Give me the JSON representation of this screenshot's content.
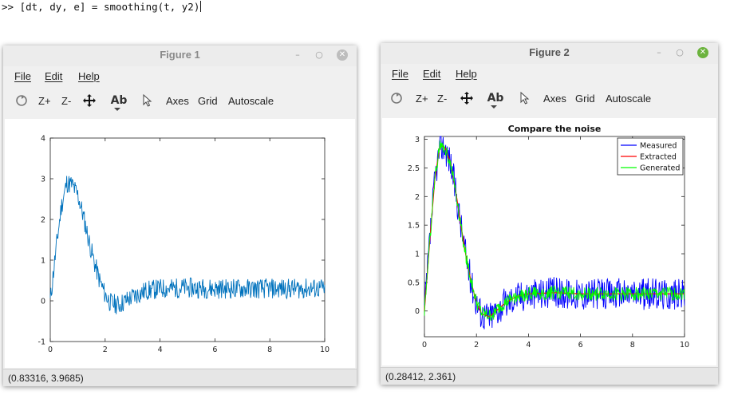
{
  "console": {
    "prompt": ">>",
    "command": "[dt, dy, e] = smoothing(t, y2)"
  },
  "windows": [
    {
      "title": "Figure 1",
      "menu": [
        "File",
        "Edit",
        "Help"
      ],
      "toolbar": {
        "zoom_in": "Z+",
        "zoom_out": "Z-",
        "axes": "Axes",
        "grid": "Grid",
        "autoscale": "Autoscale",
        "text_tool": "Ab"
      },
      "icons": [
        "rotate-icon",
        "pan-icon",
        "text-icon",
        "pointer-icon"
      ],
      "status": "(0.83316, 3.9685)"
    },
    {
      "title": "Figure 2",
      "menu": [
        "File",
        "Edit",
        "Help"
      ],
      "toolbar": {
        "zoom_in": "Z+",
        "zoom_out": "Z-",
        "axes": "Axes",
        "grid": "Grid",
        "autoscale": "Autoscale",
        "text_tool": "Ab"
      },
      "icons": [
        "rotate-icon",
        "pan-icon",
        "text-icon",
        "pointer-icon"
      ],
      "status": "(0.28412, 2.361)"
    }
  ],
  "colors": {
    "series_blue_fig1": "#0072bd",
    "measured": "#0000ff",
    "extracted": "#ff0000",
    "generated": "#00ff00",
    "fig2_close": "#6cb33e"
  },
  "chart_data": [
    {
      "type": "line",
      "title": "",
      "xlabel": "",
      "ylabel": "",
      "xlim": [
        0,
        10
      ],
      "ylim": [
        -1,
        4
      ],
      "xticks": [
        0,
        2,
        4,
        6,
        8,
        10
      ],
      "yticks": [
        -1,
        0,
        1,
        2,
        3,
        4
      ],
      "grid": false,
      "series": [
        {
          "color": "#0072bd",
          "shape": "noisy step response",
          "noise_amplitude": 0.25,
          "x": [
            0,
            0.2,
            0.4,
            0.6,
            0.8,
            1.0,
            1.2,
            1.4,
            1.6,
            1.8,
            2.0,
            2.2,
            2.5,
            3.0,
            3.5,
            4.0,
            5.0,
            6.0,
            7.0,
            8.0,
            9.0,
            10.0
          ],
          "y": [
            0,
            1.2,
            2.3,
            2.9,
            2.85,
            2.6,
            2.1,
            1.5,
            0.95,
            0.5,
            0.15,
            -0.05,
            -0.1,
            0.1,
            0.25,
            0.3,
            0.32,
            0.3,
            0.3,
            0.3,
            0.3,
            0.3
          ]
        }
      ]
    },
    {
      "type": "line",
      "title": "Compare the noise",
      "xlabel": "",
      "ylabel": "",
      "xlim": [
        0,
        10
      ],
      "ylim": [
        -0.45,
        3.05
      ],
      "xticks": [
        0,
        2,
        4,
        6,
        8,
        10
      ],
      "yticks": [
        "0",
        "0.5",
        "1",
        "1.5",
        "2",
        "2.5",
        "3"
      ],
      "grid": false,
      "legend": {
        "position": "top-right",
        "entries": [
          "Measured",
          "Extracted",
          "Generated"
        ]
      },
      "series": [
        {
          "name": "Measured",
          "color": "#0000ff",
          "noise_amplitude": 0.28,
          "x": [
            0,
            0.2,
            0.4,
            0.6,
            0.8,
            1.0,
            1.2,
            1.4,
            1.6,
            1.8,
            2.0,
            2.2,
            2.5,
            3.0,
            3.5,
            4.0,
            5.0,
            6.0,
            7.0,
            8.0,
            9.0,
            10.0
          ],
          "y": [
            0,
            1.2,
            2.3,
            2.9,
            2.85,
            2.6,
            2.1,
            1.5,
            0.95,
            0.5,
            0.15,
            -0.05,
            -0.1,
            0.1,
            0.25,
            0.3,
            0.32,
            0.3,
            0.3,
            0.3,
            0.3,
            0.3
          ]
        },
        {
          "name": "Extracted",
          "color": "#ff0000",
          "noise_amplitude": 0.0,
          "x": [
            0,
            0.2,
            0.4,
            0.6,
            0.8,
            1.0,
            1.2,
            1.4,
            1.6,
            1.8,
            2.0,
            2.2,
            2.5,
            3.0,
            3.5,
            4.0,
            5.0,
            6.0,
            7.0,
            8.0,
            9.0,
            10.0
          ],
          "y": [
            0,
            1.2,
            2.3,
            2.9,
            2.85,
            2.6,
            2.1,
            1.5,
            0.95,
            0.5,
            0.15,
            -0.05,
            -0.1,
            0.1,
            0.25,
            0.3,
            0.32,
            0.3,
            0.3,
            0.3,
            0.3,
            0.3
          ]
        },
        {
          "name": "Generated",
          "color": "#00ff00",
          "noise_amplitude": 0.12,
          "x": [
            0,
            0.2,
            0.4,
            0.6,
            0.8,
            1.0,
            1.2,
            1.4,
            1.6,
            1.8,
            2.0,
            2.2,
            2.5,
            3.0,
            3.5,
            4.0,
            5.0,
            6.0,
            7.0,
            8.0,
            9.0,
            10.0
          ],
          "y": [
            0,
            1.2,
            2.3,
            2.9,
            2.85,
            2.6,
            2.1,
            1.5,
            0.95,
            0.5,
            0.15,
            -0.05,
            -0.1,
            0.1,
            0.25,
            0.3,
            0.32,
            0.3,
            0.3,
            0.3,
            0.3,
            0.3
          ]
        }
      ]
    }
  ]
}
